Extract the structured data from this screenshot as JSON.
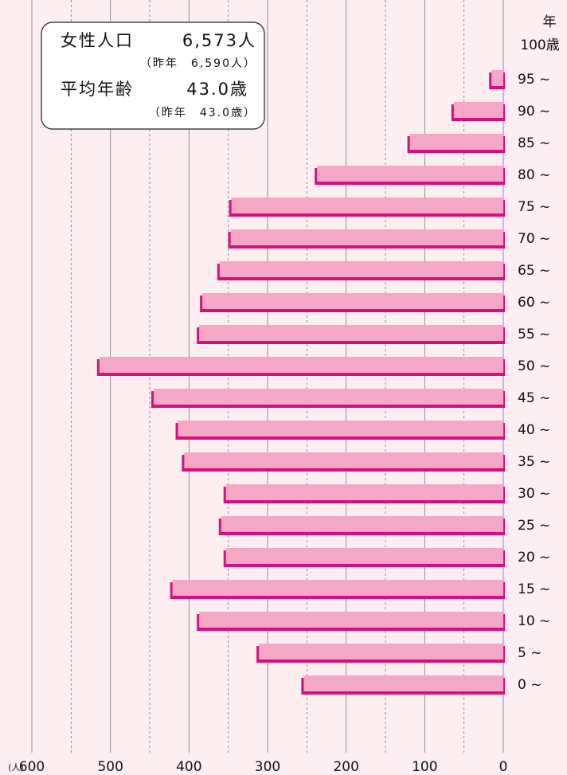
{
  "chart_data": {
    "type": "hbar",
    "categories": [
      "0 ~",
      "5 ~",
      "10 ~",
      "15 ~",
      "20 ~",
      "25 ~",
      "30 ~",
      "35 ~",
      "40 ~",
      "45 ~",
      "50 ~",
      "55 ~",
      "60 ~",
      "65 ~",
      "70 ~",
      "75 ~",
      "80 ~",
      "85 ~",
      "90 ~",
      "95 ~"
    ],
    "values": [
      254,
      311,
      387,
      421,
      353,
      359,
      353,
      406,
      414,
      445,
      514,
      387,
      383,
      361,
      347,
      346,
      237,
      119,
      63,
      15
    ],
    "color": "#f4a8c5",
    "shadow_color": "#d6107a",
    "xlim": [
      600,
      0
    ],
    "xticks": [
      600,
      500,
      400,
      300,
      200,
      100,
      0
    ],
    "xminor": [
      550,
      450,
      350,
      250,
      150,
      50
    ],
    "x_label": "(人)",
    "y_label_top": "年",
    "y_label_sub": "100歳",
    "info": {
      "pop_label": "女性人口",
      "pop_value": "6,573人",
      "pop_prev": "（昨年　6,590人）",
      "age_label": "平均年齢",
      "age_value": "43.0歳",
      "age_prev": "（昨年　43.0歳）"
    },
    "grid": true
  }
}
